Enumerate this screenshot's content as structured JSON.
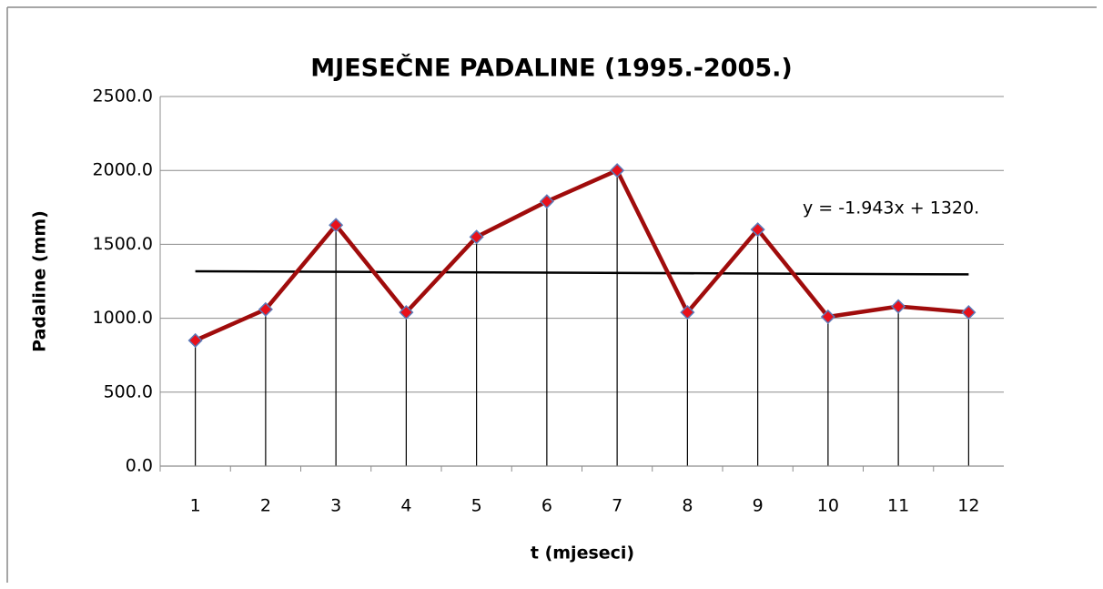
{
  "chart_data": {
    "type": "line",
    "title": "MJESEČNE PADALINE (1995.-2005.)",
    "x_label": "t (mjeseci)",
    "y_label": "Padaline (mm)",
    "categories": [
      1,
      2,
      3,
      4,
      5,
      6,
      7,
      8,
      9,
      10,
      11,
      12
    ],
    "series": [
      {
        "name": "Padaline",
        "color": "#a00c0c",
        "marker_color": "#e8101a",
        "marker_edge": "#5b79b8",
        "values": [
          850,
          1060,
          1630,
          1040,
          1550,
          1790,
          2000,
          1040,
          1600,
          1010,
          1080,
          1040
        ]
      }
    ],
    "trendline": {
      "slope": -1.943,
      "intercept": 1320,
      "label": "y = -1.943x + 1320.",
      "color": "#000000"
    },
    "drop_lines": true,
    "ylim": [
      0,
      2500
    ],
    "yticks": [
      {
        "value": 0,
        "label": "0.0"
      },
      {
        "value": 500,
        "label": "500.0"
      },
      {
        "value": 1000,
        "label": "1000.0"
      },
      {
        "value": 1500,
        "label": "1500.0"
      },
      {
        "value": 2000,
        "label": "2000.0"
      },
      {
        "value": 2500,
        "label": "2500.0"
      }
    ],
    "grid": true
  }
}
